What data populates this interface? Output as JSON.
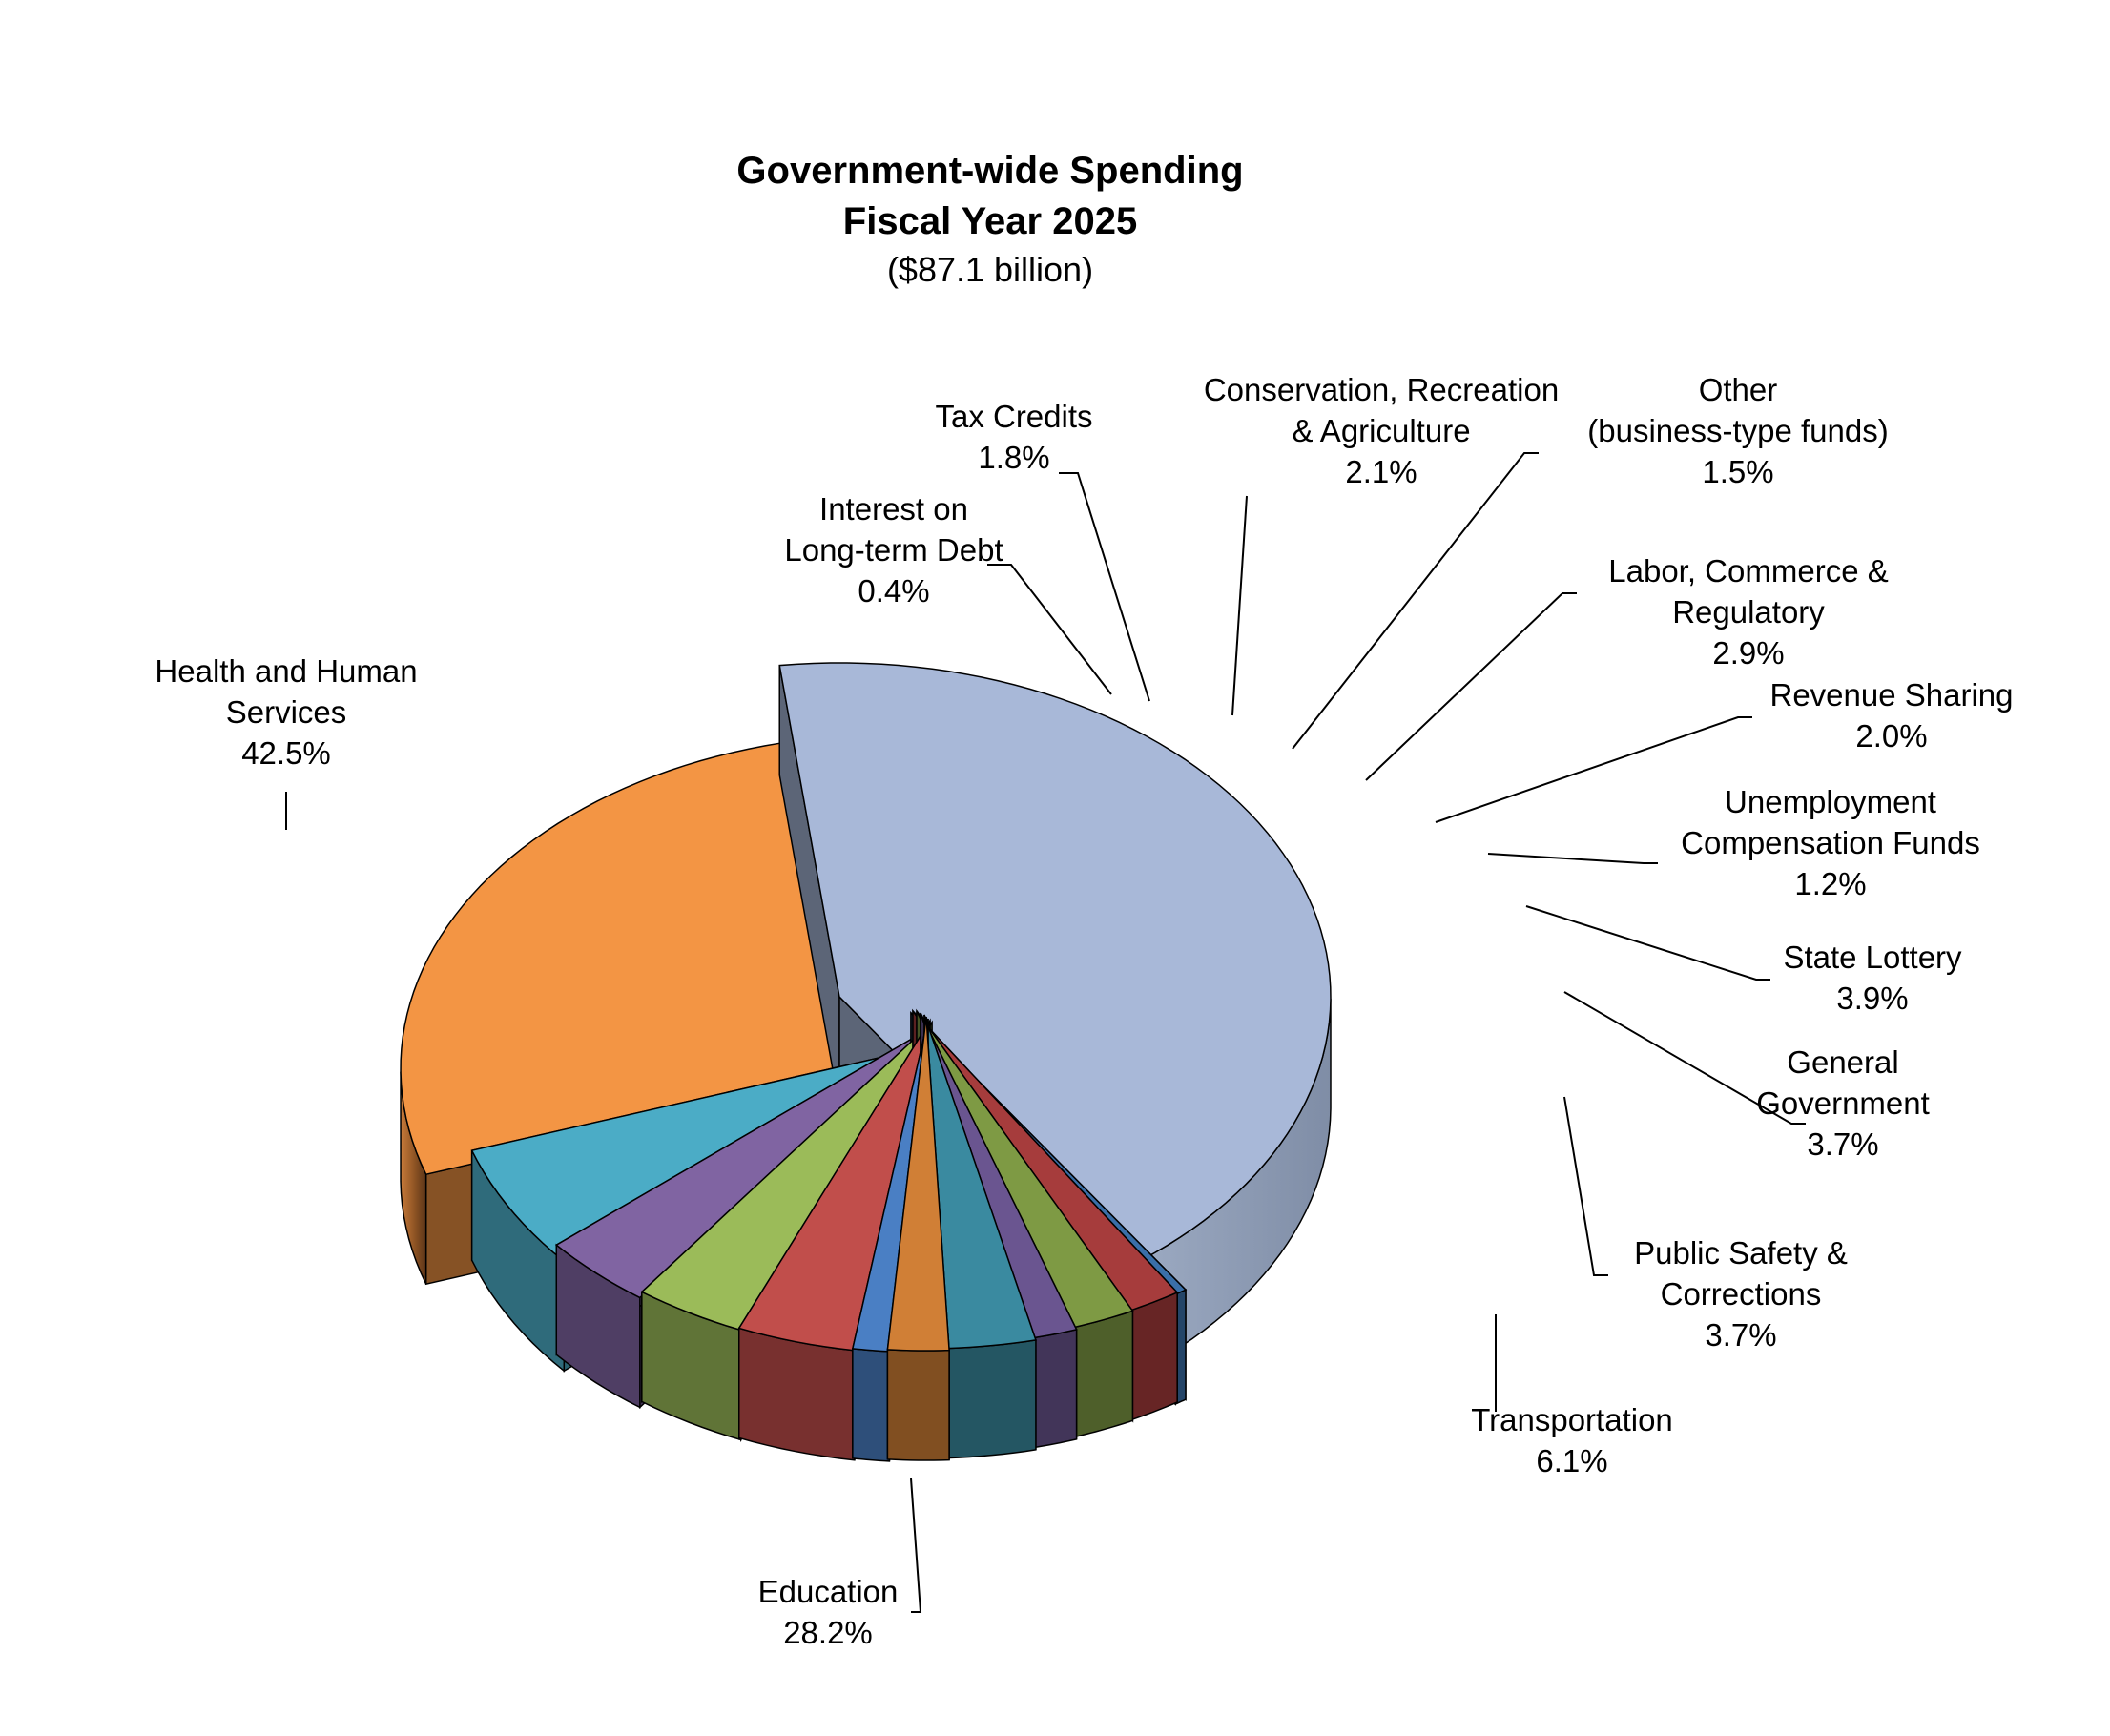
{
  "chart_data": {
    "type": "pie",
    "style": "3d-exploded",
    "title_line1": "Government-wide Spending",
    "title_line2": "Fiscal Year 2025",
    "subtitle": "($87.1 billion)",
    "slices": [
      {
        "key": "health",
        "label_lines": [
          "Health and Human",
          "Services"
        ],
        "percent_label": "42.5%",
        "value": 42.5,
        "color": "#A8B8D8"
      },
      {
        "key": "interest",
        "label_lines": [
          "Interest on",
          "Long-term Debt"
        ],
        "percent_label": "0.4%",
        "value": 0.4,
        "color": "#3A6FA8"
      },
      {
        "key": "tax",
        "label_lines": [
          "Tax Credits"
        ],
        "percent_label": "1.8%",
        "value": 1.8,
        "color": "#A63C3C"
      },
      {
        "key": "conservation",
        "label_lines": [
          "Conservation, Recreation",
          "& Agriculture"
        ],
        "percent_label": "2.1%",
        "value": 2.1,
        "color": "#7E9A44"
      },
      {
        "key": "other",
        "label_lines": [
          "Other",
          "(business-type funds)"
        ],
        "percent_label": "1.5%",
        "value": 1.5,
        "color": "#6A5590"
      },
      {
        "key": "labor",
        "label_lines": [
          "Labor, Commerce &",
          "Regulatory"
        ],
        "percent_label": "2.9%",
        "value": 2.9,
        "color": "#3A8AA0"
      },
      {
        "key": "revenue",
        "label_lines": [
          "Revenue Sharing"
        ],
        "percent_label": "2.0%",
        "value": 2.0,
        "color": "#D07F36"
      },
      {
        "key": "unemployment",
        "label_lines": [
          "Unemployment",
          "Compensation Funds"
        ],
        "percent_label": "1.2%",
        "value": 1.2,
        "color": "#4A7FC4"
      },
      {
        "key": "lottery",
        "label_lines": [
          "State Lottery"
        ],
        "percent_label": "3.9%",
        "value": 3.9,
        "color": "#C14E4B"
      },
      {
        "key": "general",
        "label_lines": [
          "General",
          "Government"
        ],
        "percent_label": "3.7%",
        "value": 3.7,
        "color": "#9BBB59"
      },
      {
        "key": "safety",
        "label_lines": [
          "Public Safety &",
          "Corrections"
        ],
        "percent_label": "3.7%",
        "value": 3.7,
        "color": "#8064A2"
      },
      {
        "key": "transport",
        "label_lines": [
          "Transportation"
        ],
        "percent_label": "6.1%",
        "value": 6.1,
        "color": "#4BACC6"
      },
      {
        "key": "education",
        "label_lines": [
          "Education"
        ],
        "percent_label": "28.2%",
        "value": 28.2,
        "color": "#F39544"
      }
    ]
  }
}
